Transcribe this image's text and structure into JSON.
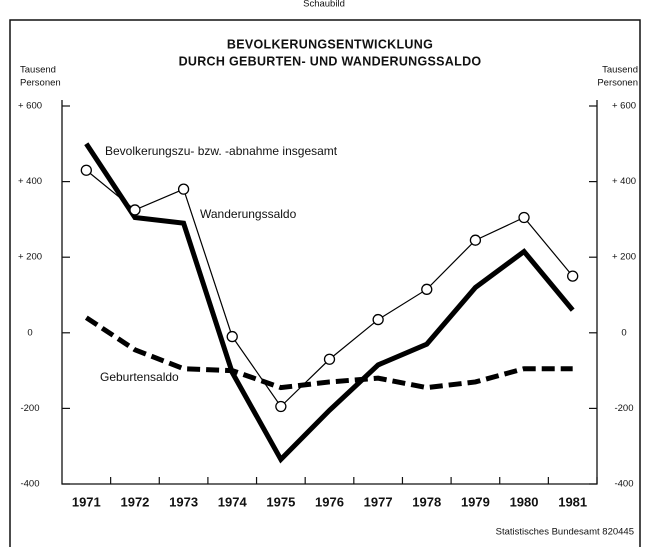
{
  "chart_data": {
    "type": "line",
    "header": "Schaubild",
    "title": [
      "BEVOLKERUNGSENTWICKLUNG",
      "DURCH GEBURTEN- UND WANDERUNGSSALDO"
    ],
    "ylabel": [
      "Tausend",
      "Personen"
    ],
    "categories": [
      "1971",
      "1972",
      "1973",
      "1974",
      "1975",
      "1976",
      "1977",
      "1978",
      "1979",
      "1980",
      "1981"
    ],
    "series": [
      {
        "name": "Bevolkerungszu- bzw. -abnahme insgesamt",
        "color": "#000000",
        "values": [
          500,
          305,
          290,
          -105,
          -335,
          -205,
          -85,
          -30,
          120,
          215,
          60
        ]
      },
      {
        "name": "Wanderungssaldo",
        "color": "#000000",
        "values": [
          430,
          325,
          380,
          -10,
          -195,
          -70,
          35,
          115,
          245,
          305,
          150
        ]
      },
      {
        "name": "Geburtensaldo",
        "color": "#000000",
        "values": [
          40,
          -45,
          -95,
          -100,
          -145,
          -130,
          -120,
          -145,
          -130,
          -95,
          -95
        ]
      }
    ],
    "ylim": [
      -400,
      600
    ],
    "yticks": [
      {
        "value": 600,
        "label": "+ 600"
      },
      {
        "value": 400,
        "label": "+ 400"
      },
      {
        "value": 200,
        "label": "+ 200"
      },
      0,
      {
        "value": -200,
        "label": "-200"
      },
      {
        "value": -400,
        "label": "-400"
      }
    ],
    "source": "Statistisches Bundesamt 820445"
  }
}
